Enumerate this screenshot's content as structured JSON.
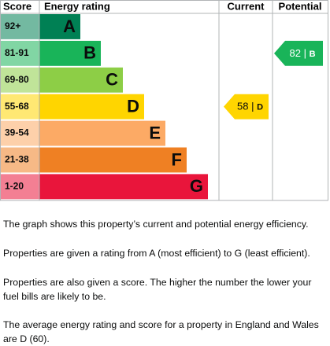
{
  "header": {
    "score": "Score",
    "rating": "Energy rating",
    "current": "Current",
    "potential": "Potential"
  },
  "bands": [
    {
      "score": "92+",
      "letter": "A",
      "color": "#008054"
    },
    {
      "score": "81-91",
      "letter": "B",
      "color": "#19b459"
    },
    {
      "score": "69-80",
      "letter": "C",
      "color": "#8dce46"
    },
    {
      "score": "55-68",
      "letter": "D",
      "color": "#ffd500"
    },
    {
      "score": "39-54",
      "letter": "E",
      "color": "#fcaa65"
    },
    {
      "score": "21-38",
      "letter": "F",
      "color": "#ef8023"
    },
    {
      "score": "1-20",
      "letter": "G",
      "color": "#e9153b"
    }
  ],
  "current": {
    "score": 58,
    "separator": "|",
    "band": "D"
  },
  "potential": {
    "score": 82,
    "separator": "|",
    "band": "B"
  },
  "paragraphs": [
    "The graph shows this property’s current and potential energy efficiency.",
    "Properties are given a rating from A (most efficient) to G (least efficient).",
    "Properties are also given a score. The higher the number the lower your fuel bills are likely to be.",
    "The average energy rating and score for a property in England and Wales are D (60)."
  ]
}
